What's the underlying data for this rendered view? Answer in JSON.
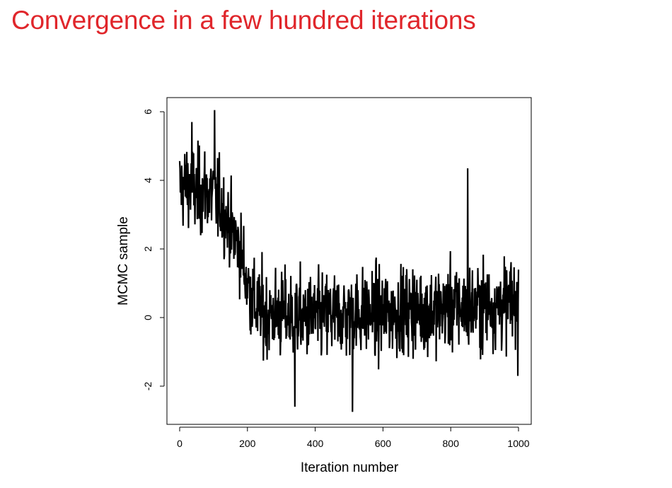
{
  "slide": {
    "title": "Convergence in a few hundred iterations",
    "title_color": "#e0262b"
  },
  "chart_data": {
    "type": "line",
    "title": "",
    "xlabel": "Iteration number",
    "ylabel": "MCMC sample",
    "xlim": [
      0,
      1000
    ],
    "ylim": [
      -3,
      6.5
    ],
    "x_ticks": [
      0,
      200,
      400,
      600,
      800,
      1000
    ],
    "y_ticks": [
      -2,
      0,
      2,
      4,
      6
    ],
    "x_tick_labels": [
      "0",
      "200",
      "400",
      "600",
      "800",
      "1000"
    ],
    "y_tick_labels": [
      "-2",
      "0",
      "2",
      "4",
      "6"
    ],
    "grid": false,
    "line_color": "#000000",
    "series": [
      {
        "x": [
          0,
          25,
          50,
          75,
          100,
          125,
          150,
          175,
          200,
          225,
          250,
          300,
          350,
          400,
          450,
          500,
          550,
          600,
          650,
          700,
          750,
          800,
          850,
          900,
          950,
          1000
        ],
        "y": [
          3.8,
          3.9,
          3.6,
          3.7,
          3.6,
          3.2,
          2.6,
          2.1,
          1.0,
          0.3,
          0.1,
          0.1,
          0.0,
          0.0,
          0.05,
          0.1,
          0.15,
          0.1,
          0.2,
          0.25,
          0.2,
          0.3,
          0.3,
          0.35,
          0.4,
          0.45
        ],
        "spread": [
          0.9,
          1.0,
          1.0,
          1.0,
          1.0,
          0.9,
          0.9,
          0.9,
          1.0,
          1.0,
          1.0,
          1.0,
          1.0,
          1.0,
          1.0,
          1.0,
          1.0,
          1.0,
          1.0,
          1.0,
          1.0,
          1.0,
          1.0,
          1.0,
          1.0,
          1.0
        ],
        "notable_points": [
          {
            "x": 36,
            "y": 5.7
          },
          {
            "x": 103,
            "y": 6.05
          },
          {
            "x": 340,
            "y": -2.6
          },
          {
            "x": 510,
            "y": -2.75
          },
          {
            "x": 850,
            "y": 4.35
          },
          {
            "x": 998,
            "y": -1.7
          }
        ]
      }
    ]
  }
}
